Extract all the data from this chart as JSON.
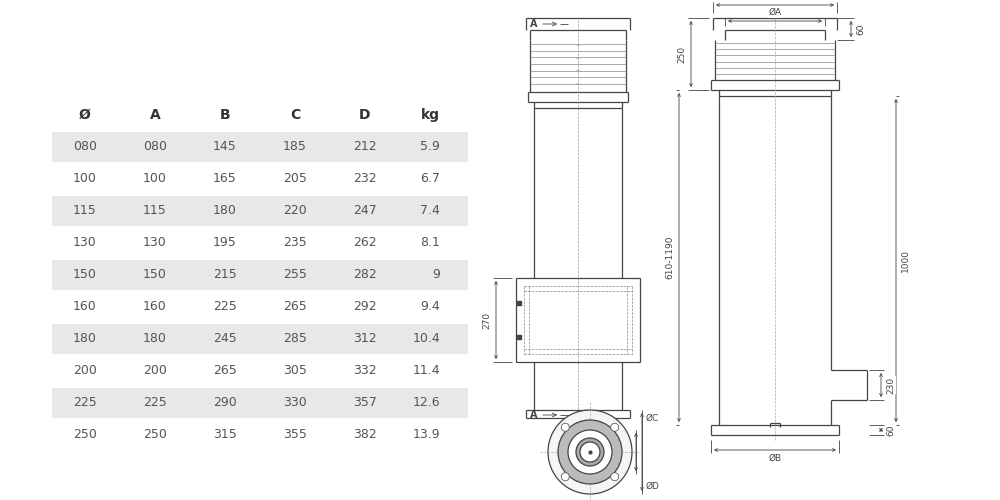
{
  "table_headers": [
    "Ø",
    "A",
    "B",
    "C",
    "D",
    "kg"
  ],
  "table_rows": [
    [
      "080",
      "080",
      "145",
      "185",
      "212",
      "5.9"
    ],
    [
      "100",
      "100",
      "165",
      "205",
      "232",
      "6.7"
    ],
    [
      "115",
      "115",
      "180",
      "220",
      "247",
      "7.4"
    ],
    [
      "130",
      "130",
      "195",
      "235",
      "262",
      "8.1"
    ],
    [
      "150",
      "150",
      "215",
      "255",
      "282",
      "9"
    ],
    [
      "160",
      "160",
      "225",
      "265",
      "292",
      "9.4"
    ],
    [
      "180",
      "180",
      "245",
      "285",
      "312",
      "10.4"
    ],
    [
      "200",
      "200",
      "265",
      "305",
      "332",
      "11.4"
    ],
    [
      "225",
      "225",
      "290",
      "330",
      "357",
      "12.6"
    ],
    [
      "250",
      "250",
      "315",
      "355",
      "382",
      "13.9"
    ]
  ],
  "shaded_rows": [
    0,
    2,
    4,
    6,
    8
  ],
  "row_bg_color": "#e8e8e8",
  "header_color": "#333333",
  "text_color": "#555555",
  "line_color": "#444444",
  "bg_color": "#ffffff",
  "font_size": 9,
  "header_font_size": 10
}
